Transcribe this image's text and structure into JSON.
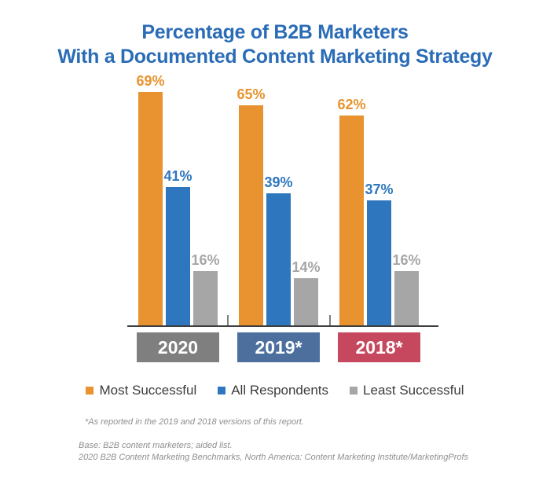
{
  "title": {
    "line1": "Percentage of B2B Marketers",
    "line2": "With a Documented Content Marketing Strategy"
  },
  "chart_data": {
    "type": "bar",
    "title": "Percentage of B2B Marketers With a Documented Content Marketing Strategy",
    "categories": [
      "2020",
      "2019*",
      "2018*"
    ],
    "category_box_colors": [
      "#7F7F7F",
      "#4C6F9E",
      "#C6485E"
    ],
    "series": [
      {
        "name": "Most Successful",
        "color": "#E8932F",
        "values": [
          69,
          65,
          62
        ]
      },
      {
        "name": "All Respondents",
        "color": "#2E77BE",
        "values": [
          41,
          39,
          37
        ]
      },
      {
        "name": "Least Successful",
        "color": "#A6A6A6",
        "values": [
          16,
          14,
          16
        ]
      }
    ],
    "value_suffix": "%",
    "ylim": [
      0,
      75
    ],
    "grid": false,
    "legend_position": "bottom",
    "axis_color": "#3F3F3F"
  },
  "footnotes": {
    "asterisk_note": "*As reported in the 2019 and 2018 versions of this report.",
    "base_line1": "Base: B2B content marketers; aided list.",
    "base_line2": "2020 B2B Content Marketing Benchmarks, North America: Content Marketing Institute/MarketingProfs"
  },
  "colors": {
    "title_text": "#2A6CB6",
    "legend_text": "#3B3B3B",
    "footnote_text": "#8F8F8F",
    "category_label_text": "#FFFFFF"
  }
}
